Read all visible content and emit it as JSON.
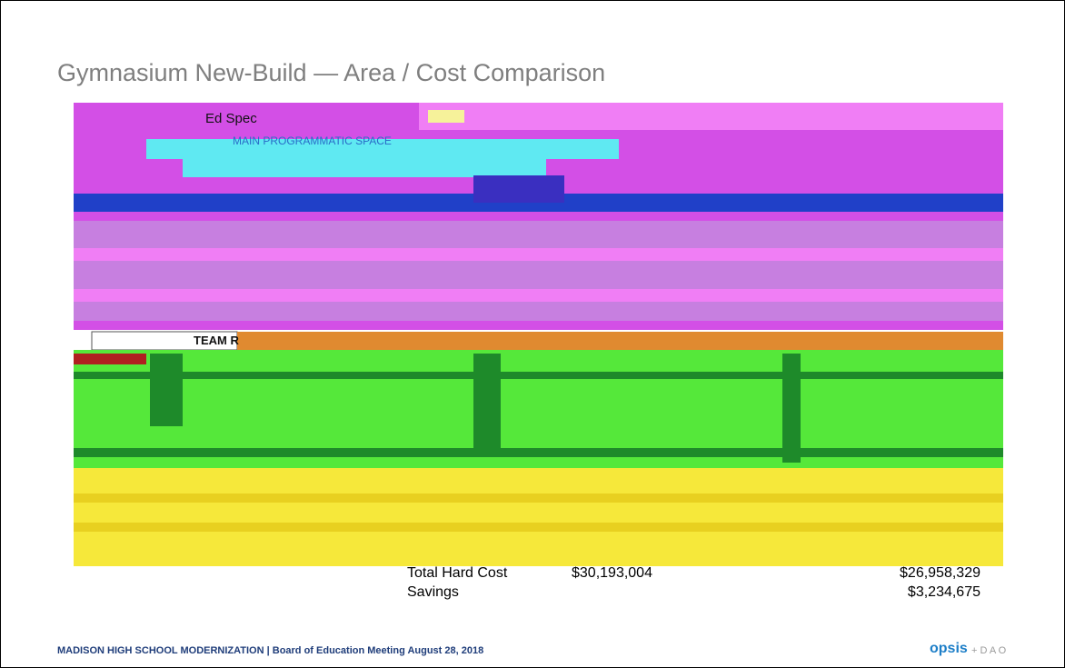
{
  "header": {
    "title": "Gymnasium New-Build — Area / Cost Comparison"
  },
  "image_text": {
    "ed_spec": "Ed Spec",
    "space": "MAIN PROGRAMMATIC SPACE",
    "team": "TEAM R"
  },
  "totals": {
    "rows": [
      {
        "label": "Total Hard Cost",
        "ed_spec": "$30,193,004",
        "new_gym": "$26,958,329"
      },
      {
        "label": "Savings",
        "new_gym": "$3,234,675"
      }
    ]
  },
  "footer": {
    "project": "MADISON HIGH SCHOOL MODERNIZATION",
    "separator": "|",
    "meeting": "Board of Education Meeting August 28, 2018",
    "brand": "opsis",
    "partner": "+ D A O"
  }
}
